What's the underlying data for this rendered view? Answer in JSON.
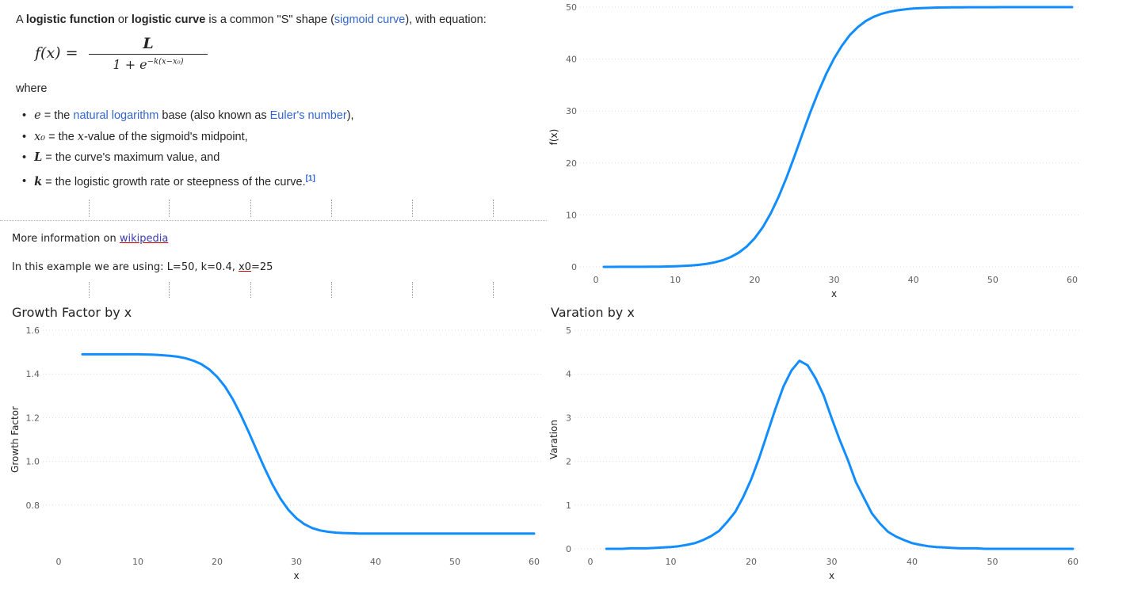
{
  "wiki": {
    "intro_a": "A ",
    "intro_term1": "logistic function",
    "intro_or": " or ",
    "intro_term2": "logistic curve",
    "intro_b": " is a common \"S\" shape (",
    "intro_link": "sigmoid curve",
    "intro_c": "), with equation:",
    "formula_lhs": "f(x) =",
    "formula_num": "L",
    "formula_den": "1 + e",
    "formula_exp": "−k(x−x₀)",
    "where": "where",
    "b1_var": "e",
    "b1_a": " = the ",
    "b1_link1": "natural logarithm",
    "b1_b": " base (also known as ",
    "b1_link2": "Euler's number",
    "b1_c": "),",
    "b2_var": "x₀",
    "b2_a": " = the ",
    "b2_var2": "x",
    "b2_b": "-value of the sigmoid's midpoint,",
    "b3_var": "L",
    "b3_a": " = the curve's maximum value, and",
    "b4_var": "k",
    "b4_a": " = the logistic growth rate or steepness of the curve.",
    "b4_ref": "[1]"
  },
  "info": {
    "more_prefix": "More information on ",
    "more_link": "wikipedia",
    "example_prefix": "In this example we are using: L=50, k=0.4, ",
    "example_ul": "x0",
    "example_suffix": "=25"
  },
  "titles": {
    "growth": "Growth Factor by x",
    "variation": "Varation by x"
  },
  "colors": {
    "series": "#118DFF",
    "grid": "#d9d9d9",
    "tick": "#605e5c"
  },
  "chart_data": [
    {
      "id": "fx",
      "type": "line",
      "title": "",
      "xlabel": "x",
      "ylabel": "f(x)",
      "xlim": [
        0,
        60
      ],
      "ylim": [
        0,
        50
      ],
      "xticks": [
        0,
        10,
        20,
        30,
        40,
        50,
        60
      ],
      "yticks": [
        0,
        10,
        20,
        30,
        40,
        50
      ],
      "grid": "horizontal",
      "x": [
        1,
        2,
        3,
        4,
        5,
        6,
        7,
        8,
        9,
        10,
        11,
        12,
        13,
        14,
        15,
        16,
        17,
        18,
        19,
        20,
        21,
        22,
        23,
        24,
        25,
        26,
        27,
        28,
        29,
        30,
        31,
        32,
        33,
        34,
        35,
        36,
        37,
        38,
        39,
        40,
        41,
        42,
        43,
        44,
        45,
        46,
        47,
        48,
        49,
        50,
        51,
        52,
        53,
        54,
        55,
        56,
        57,
        58,
        59,
        60
      ],
      "values": [
        0.0,
        0.0,
        0.01,
        0.01,
        0.02,
        0.02,
        0.04,
        0.05,
        0.08,
        0.12,
        0.18,
        0.27,
        0.4,
        0.6,
        0.88,
        1.29,
        1.9,
        2.74,
        3.92,
        5.51,
        7.59,
        10.23,
        13.43,
        17.14,
        21.22,
        25.5,
        29.7,
        33.6,
        37.11,
        40.1,
        42.59,
        44.63,
        46.16,
        47.33,
        48.14,
        48.72,
        49.11,
        49.39,
        49.59,
        49.72,
        49.81,
        49.87,
        49.92,
        49.94,
        49.96,
        49.97,
        49.98,
        49.99,
        49.99,
        49.99,
        50.0,
        50.0,
        50.0,
        50.0,
        50.0,
        50.0,
        50.0,
        50.0,
        50.0,
        50.0
      ]
    },
    {
      "id": "growth",
      "type": "line",
      "title": "Growth Factor by x",
      "xlabel": "x",
      "ylabel": "Growth Factor",
      "xlim": [
        0,
        60
      ],
      "ylim": [
        0.6,
        1.6
      ],
      "xticks": [
        0,
        10,
        20,
        30,
        40,
        50,
        60
      ],
      "yticks": [
        0.8,
        1.0,
        1.2,
        1.4,
        1.6
      ],
      "grid": "horizontal",
      "x": [
        3,
        4,
        5,
        6,
        7,
        8,
        9,
        10,
        11,
        12,
        13,
        14,
        15,
        16,
        17,
        18,
        19,
        20,
        21,
        22,
        23,
        24,
        25,
        26,
        27,
        28,
        29,
        30,
        31,
        32,
        33,
        34,
        35,
        36,
        37,
        38,
        39,
        40,
        41,
        42,
        43,
        44,
        45,
        46,
        47,
        48,
        49,
        50,
        51,
        52,
        53,
        54,
        55,
        56,
        57,
        58,
        59,
        60
      ],
      "values": [
        1.49,
        1.49,
        1.49,
        1.49,
        1.49,
        1.49,
        1.49,
        1.49,
        1.489,
        1.488,
        1.486,
        1.483,
        1.479,
        1.472,
        1.461,
        1.445,
        1.421,
        1.387,
        1.342,
        1.283,
        1.212,
        1.133,
        1.05,
        0.968,
        0.893,
        0.829,
        0.778,
        0.74,
        0.713,
        0.695,
        0.684,
        0.678,
        0.674,
        0.672,
        0.671,
        0.67,
        0.67,
        0.67,
        0.67,
        0.67,
        0.67,
        0.67,
        0.67,
        0.67,
        0.67,
        0.67,
        0.67,
        0.67,
        0.67,
        0.67,
        0.67,
        0.67,
        0.67,
        0.67,
        0.67,
        0.67,
        0.67,
        0.67
      ]
    },
    {
      "id": "variation",
      "type": "line",
      "title": "Varation by x",
      "xlabel": "x",
      "ylabel": "Varation",
      "xlim": [
        0,
        60
      ],
      "ylim": [
        0,
        5
      ],
      "xticks": [
        0,
        10,
        20,
        30,
        40,
        50,
        60
      ],
      "yticks": [
        0,
        1,
        2,
        3,
        4,
        5
      ],
      "grid": "horizontal",
      "x": [
        2,
        3,
        4,
        5,
        6,
        7,
        8,
        9,
        10,
        11,
        12,
        13,
        14,
        15,
        16,
        17,
        18,
        19,
        20,
        21,
        22,
        23,
        24,
        25,
        26,
        27,
        28,
        29,
        30,
        31,
        32,
        33,
        34,
        35,
        36,
        37,
        38,
        39,
        40,
        41,
        42,
        43,
        44,
        45,
        46,
        47,
        48,
        49,
        50,
        51,
        52,
        53,
        54,
        55,
        56,
        57,
        58,
        59,
        60
      ],
      "values": [
        0.0,
        0.0,
        0.0,
        0.01,
        0.01,
        0.01,
        0.02,
        0.03,
        0.04,
        0.06,
        0.09,
        0.13,
        0.2,
        0.29,
        0.41,
        0.61,
        0.84,
        1.18,
        1.59,
        2.08,
        2.64,
        3.2,
        3.71,
        4.08,
        4.3,
        4.2,
        3.9,
        3.51,
        2.99,
        2.49,
        2.04,
        1.53,
        1.17,
        0.81,
        0.58,
        0.39,
        0.28,
        0.2,
        0.13,
        0.09,
        0.06,
        0.04,
        0.03,
        0.02,
        0.01,
        0.01,
        0.01,
        0.0,
        0.0,
        0.0,
        0.0,
        0.0,
        0.0,
        0.0,
        0.0,
        0.0,
        0.0,
        0.0,
        0.0
      ]
    }
  ]
}
